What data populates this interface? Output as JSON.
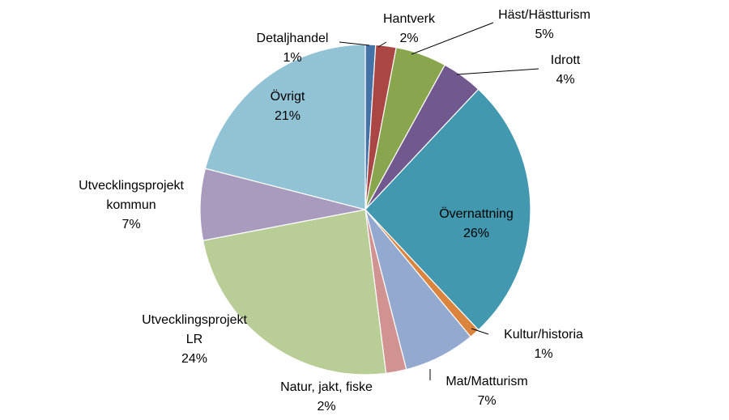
{
  "chart_data": {
    "type": "pie",
    "title": "",
    "start_angle_deg": 0,
    "direction": "clockwise",
    "legend": "none",
    "slices": [
      {
        "label": "Detaljhandel",
        "value": 1,
        "percent_label": "1%",
        "color": "#4572A7"
      },
      {
        "label": "Hantverk",
        "value": 2,
        "percent_label": "2%",
        "color": "#AA4643"
      },
      {
        "label": "Häst/Hästturism",
        "value": 5,
        "percent_label": "5%",
        "color": "#89A54E"
      },
      {
        "label": "Idrott",
        "value": 4,
        "percent_label": "4%",
        "color": "#71588F"
      },
      {
        "label": "Övernattning",
        "value": 26,
        "percent_label": "26%",
        "color": "#4198AF"
      },
      {
        "label": "Kultur/historia",
        "value": 1,
        "percent_label": "1%",
        "color": "#DB843D"
      },
      {
        "label": "Mat/Matturism",
        "value": 7,
        "percent_label": "7%",
        "color": "#93A9CF"
      },
      {
        "label": "Natur, jakt, fiske",
        "value": 2,
        "percent_label": "2%",
        "color": "#D19392"
      },
      {
        "label": "Utvecklingsprojekt LR",
        "value": 24,
        "percent_label": "24%",
        "color": "#B9CD96"
      },
      {
        "label": "Utvecklingsprojekt kommun",
        "value": 7,
        "percent_label": "7%",
        "color": "#A99BBD"
      },
      {
        "label": "Övrigt",
        "value": 21,
        "percent_label": "21%",
        "color": "#91C3D5"
      }
    ]
  }
}
